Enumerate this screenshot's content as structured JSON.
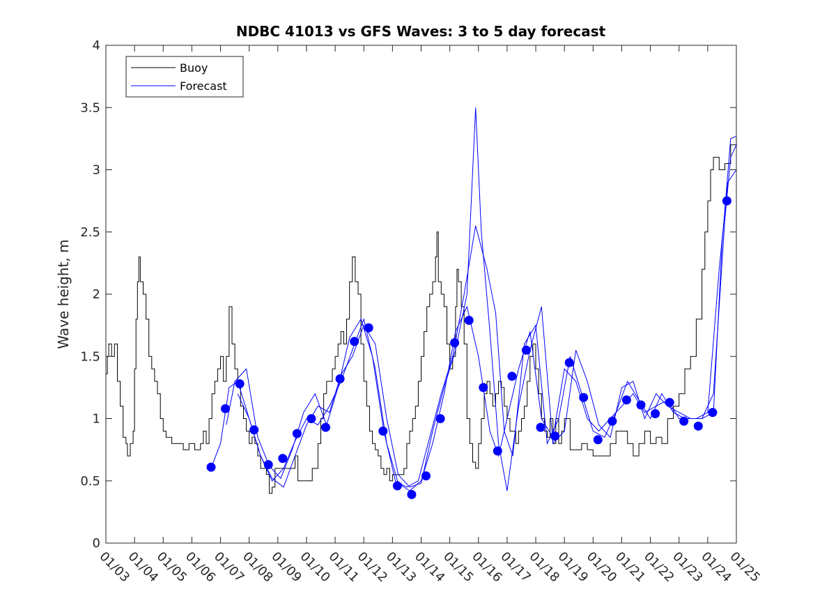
{
  "chart_data": {
    "type": "line",
    "title": "NDBC 41013 vs GFS Waves: 3 to 5 day forecast",
    "xlabel": "",
    "ylabel": "Wave height, m",
    "xlim": [
      0,
      22
    ],
    "ylim": [
      0,
      4
    ],
    "x_ticks": [
      "01/03",
      "01/04",
      "01/05",
      "01/06",
      "01/07",
      "01/08",
      "01/09",
      "01/10",
      "01/11",
      "01/12",
      "01/13",
      "01/14",
      "01/15",
      "01/16",
      "01/17",
      "01/18",
      "01/19",
      "01/20",
      "01/21",
      "01/22",
      "01/23",
      "01/24",
      "01/25"
    ],
    "y_ticks": [
      "0",
      "0.5",
      "1",
      "1.5",
      "2",
      "2.5",
      "3",
      "3.5",
      "4"
    ],
    "y_tick_values": [
      0,
      0.5,
      1,
      1.5,
      2,
      2.5,
      3,
      3.5,
      4
    ],
    "legend": {
      "position": "top-left",
      "entries": [
        {
          "label": "Buoy",
          "color": "#000000"
        },
        {
          "label": "Forecast",
          "color": "#0000ff"
        }
      ]
    },
    "colors": {
      "buoy": "#000000",
      "forecast": "#0000ff"
    },
    "buoy": {
      "name": "Buoy",
      "points": [
        [
          0,
          1.36
        ],
        [
          0.05,
          1.5
        ],
        [
          0.1,
          1.6
        ],
        [
          0.2,
          1.5
        ],
        [
          0.3,
          1.6
        ],
        [
          0.4,
          1.3
        ],
        [
          0.5,
          1.1
        ],
        [
          0.6,
          0.85
        ],
        [
          0.7,
          0.8
        ],
        [
          0.75,
          0.7
        ],
        [
          0.85,
          0.8
        ],
        [
          0.95,
          0.9
        ],
        [
          1.0,
          1.4
        ],
        [
          1.05,
          1.8
        ],
        [
          1.1,
          2.1
        ],
        [
          1.15,
          2.3
        ],
        [
          1.2,
          2.1
        ],
        [
          1.3,
          2.0
        ],
        [
          1.4,
          1.8
        ],
        [
          1.5,
          1.5
        ],
        [
          1.6,
          1.4
        ],
        [
          1.7,
          1.3
        ],
        [
          1.8,
          1.2
        ],
        [
          1.9,
          1.0
        ],
        [
          2.0,
          0.9
        ],
        [
          2.1,
          0.85
        ],
        [
          2.3,
          0.8
        ],
        [
          2.5,
          0.8
        ],
        [
          2.7,
          0.75
        ],
        [
          2.9,
          0.8
        ],
        [
          3.1,
          0.75
        ],
        [
          3.3,
          0.8
        ],
        [
          3.4,
          0.9
        ],
        [
          3.5,
          0.8
        ],
        [
          3.6,
          1.0
        ],
        [
          3.7,
          1.2
        ],
        [
          3.8,
          1.3
        ],
        [
          3.9,
          1.4
        ],
        [
          4.0,
          1.5
        ],
        [
          4.1,
          1.3
        ],
        [
          4.2,
          1.5
        ],
        [
          4.3,
          1.9
        ],
        [
          4.4,
          1.6
        ],
        [
          4.5,
          1.4
        ],
        [
          4.6,
          1.3
        ],
        [
          4.7,
          1.1
        ],
        [
          4.8,
          1.0
        ],
        [
          4.9,
          0.9
        ],
        [
          5.0,
          0.8
        ],
        [
          5.1,
          0.85
        ],
        [
          5.2,
          0.8
        ],
        [
          5.3,
          0.7
        ],
        [
          5.4,
          0.6
        ],
        [
          5.5,
          0.6
        ],
        [
          5.6,
          0.55
        ],
        [
          5.7,
          0.4
        ],
        [
          5.8,
          0.45
        ],
        [
          5.9,
          0.6
        ],
        [
          6.0,
          0.6
        ],
        [
          6.2,
          0.6
        ],
        [
          6.4,
          0.6
        ],
        [
          6.6,
          0.7
        ],
        [
          6.7,
          0.5
        ],
        [
          6.9,
          0.5
        ],
        [
          7.2,
          0.6
        ],
        [
          7.4,
          0.8
        ],
        [
          7.5,
          1.0
        ],
        [
          7.6,
          1.2
        ],
        [
          7.7,
          1.3
        ],
        [
          7.8,
          1.3
        ],
        [
          7.9,
          1.4
        ],
        [
          8.0,
          1.5
        ],
        [
          8.1,
          1.6
        ],
        [
          8.2,
          1.7
        ],
        [
          8.3,
          1.6
        ],
        [
          8.4,
          1.8
        ],
        [
          8.5,
          2.1
        ],
        [
          8.6,
          2.3
        ],
        [
          8.7,
          2.1
        ],
        [
          8.8,
          2.0
        ],
        [
          8.9,
          1.6
        ],
        [
          9.0,
          1.3
        ],
        [
          9.1,
          1.1
        ],
        [
          9.2,
          0.9
        ],
        [
          9.3,
          0.8
        ],
        [
          9.4,
          0.75
        ],
        [
          9.5,
          0.7
        ],
        [
          9.6,
          0.6
        ],
        [
          9.7,
          0.55
        ],
        [
          9.8,
          0.6
        ],
        [
          9.9,
          0.5
        ],
        [
          10.0,
          0.55
        ],
        [
          10.2,
          0.55
        ],
        [
          10.4,
          0.6
        ],
        [
          10.5,
          0.8
        ],
        [
          10.6,
          0.9
        ],
        [
          10.7,
          1.0
        ],
        [
          10.8,
          1.1
        ],
        [
          10.9,
          1.3
        ],
        [
          11.0,
          1.5
        ],
        [
          11.1,
          1.7
        ],
        [
          11.2,
          1.9
        ],
        [
          11.3,
          2.0
        ],
        [
          11.4,
          2.1
        ],
        [
          11.5,
          2.3
        ],
        [
          11.55,
          2.5
        ],
        [
          11.6,
          2.1
        ],
        [
          11.7,
          2.0
        ],
        [
          11.8,
          1.9
        ],
        [
          11.9,
          1.6
        ],
        [
          12.0,
          1.4
        ],
        [
          12.1,
          1.5
        ],
        [
          12.2,
          1.9
        ],
        [
          12.25,
          2.2
        ],
        [
          12.3,
          2.1
        ],
        [
          12.4,
          1.9
        ],
        [
          12.5,
          1.6
        ],
        [
          12.6,
          1.0
        ],
        [
          12.7,
          0.8
        ],
        [
          12.8,
          0.65
        ],
        [
          12.9,
          0.6
        ],
        [
          13.0,
          0.8
        ],
        [
          13.1,
          1.0
        ],
        [
          13.2,
          1.2
        ],
        [
          13.3,
          1.3
        ],
        [
          13.4,
          1.2
        ],
        [
          13.5,
          1.1
        ],
        [
          13.6,
          1.2
        ],
        [
          13.7,
          1.3
        ],
        [
          13.8,
          1.25
        ],
        [
          13.9,
          1.1
        ],
        [
          14.0,
          1.0
        ],
        [
          14.1,
          0.9
        ],
        [
          14.2,
          0.9
        ],
        [
          14.3,
          0.8
        ],
        [
          14.4,
          0.9
        ],
        [
          14.5,
          1.0
        ],
        [
          14.6,
          1.1
        ],
        [
          14.7,
          1.3
        ],
        [
          14.8,
          1.5
        ],
        [
          14.9,
          1.6
        ],
        [
          15.0,
          1.4
        ],
        [
          15.1,
          1.2
        ],
        [
          15.2,
          1.0
        ],
        [
          15.3,
          0.9
        ],
        [
          15.4,
          0.85
        ],
        [
          15.5,
          1.0
        ],
        [
          15.6,
          0.8
        ],
        [
          15.7,
          1.0
        ],
        [
          15.8,
          0.8
        ],
        [
          15.9,
          0.9
        ],
        [
          16.0,
          1.0
        ],
        [
          16.2,
          0.75
        ],
        [
          16.4,
          0.75
        ],
        [
          16.6,
          0.8
        ],
        [
          16.8,
          0.75
        ],
        [
          17.0,
          0.7
        ],
        [
          17.2,
          0.7
        ],
        [
          17.4,
          0.7
        ],
        [
          17.6,
          0.8
        ],
        [
          17.8,
          0.9
        ],
        [
          18.0,
          0.9
        ],
        [
          18.2,
          0.8
        ],
        [
          18.4,
          0.7
        ],
        [
          18.6,
          0.8
        ],
        [
          18.8,
          0.9
        ],
        [
          19.0,
          0.8
        ],
        [
          19.2,
          0.85
        ],
        [
          19.4,
          0.8
        ],
        [
          19.6,
          1.0
        ],
        [
          19.8,
          1.1
        ],
        [
          20.0,
          1.2
        ],
        [
          20.2,
          1.4
        ],
        [
          20.4,
          1.5
        ],
        [
          20.6,
          1.8
        ],
        [
          20.8,
          2.2
        ],
        [
          20.9,
          2.5
        ],
        [
          21.0,
          2.75
        ],
        [
          21.1,
          3.0
        ],
        [
          21.2,
          3.1
        ],
        [
          21.4,
          3.0
        ],
        [
          21.6,
          3.05
        ],
        [
          21.8,
          3.2
        ],
        [
          22.0,
          3.25
        ]
      ]
    },
    "forecast_points": [
      {
        "x": 3.67,
        "y": 0.61
      },
      {
        "x": 4.17,
        "y": 1.08
      },
      {
        "x": 4.67,
        "y": 1.28
      },
      {
        "x": 5.17,
        "y": 0.91
      },
      {
        "x": 5.67,
        "y": 0.63
      },
      {
        "x": 6.17,
        "y": 0.68
      },
      {
        "x": 6.67,
        "y": 0.88
      },
      {
        "x": 7.17,
        "y": 1.0
      },
      {
        "x": 7.67,
        "y": 0.93
      },
      {
        "x": 8.17,
        "y": 1.32
      },
      {
        "x": 8.67,
        "y": 1.62
      },
      {
        "x": 9.17,
        "y": 1.73
      },
      {
        "x": 9.67,
        "y": 0.9
      },
      {
        "x": 10.17,
        "y": 0.46
      },
      {
        "x": 10.67,
        "y": 0.39
      },
      {
        "x": 11.17,
        "y": 0.54
      },
      {
        "x": 11.67,
        "y": 1.0
      },
      {
        "x": 12.17,
        "y": 1.61
      },
      {
        "x": 12.67,
        "y": 1.79
      },
      {
        "x": 13.17,
        "y": 1.25
      },
      {
        "x": 13.67,
        "y": 0.74
      },
      {
        "x": 14.17,
        "y": 1.34
      },
      {
        "x": 14.67,
        "y": 1.55
      },
      {
        "x": 15.17,
        "y": 0.93
      },
      {
        "x": 15.67,
        "y": 0.86
      },
      {
        "x": 16.17,
        "y": 1.45
      },
      {
        "x": 16.67,
        "y": 1.17
      },
      {
        "x": 17.17,
        "y": 0.83
      },
      {
        "x": 17.67,
        "y": 0.98
      },
      {
        "x": 18.17,
        "y": 1.15
      },
      {
        "x": 18.67,
        "y": 1.11
      },
      {
        "x": 19.17,
        "y": 1.04
      },
      {
        "x": 19.67,
        "y": 1.13
      },
      {
        "x": 20.17,
        "y": 0.98
      },
      {
        "x": 20.67,
        "y": 0.94
      },
      {
        "x": 21.17,
        "y": 1.05
      },
      {
        "x": 21.67,
        "y": 2.75
      }
    ],
    "forecast_series": [
      [
        [
          3.7,
          0.62
        ],
        [
          4.0,
          0.8
        ],
        [
          4.3,
          1.25
        ],
        [
          4.6,
          1.3
        ],
        [
          5.0,
          1.0
        ],
        [
          5.4,
          0.7
        ],
        [
          5.8,
          0.5
        ],
        [
          6.2,
          0.6
        ],
        [
          6.6,
          0.82
        ],
        [
          7.0,
          1.0
        ],
        [
          7.4,
          0.95
        ],
        [
          7.8,
          1.1
        ],
        [
          8.2,
          1.3
        ],
        [
          8.6,
          1.55
        ],
        [
          9.0,
          1.8
        ],
        [
          9.4,
          1.4
        ],
        [
          9.8,
          0.8
        ],
        [
          10.2,
          0.48
        ],
        [
          10.6,
          0.42
        ],
        [
          11.0,
          0.5
        ],
        [
          11.4,
          0.8
        ],
        [
          11.8,
          1.2
        ],
        [
          12.2,
          1.7
        ],
        [
          12.6,
          1.9
        ],
        [
          13.0,
          1.5
        ],
        [
          13.4,
          0.9
        ],
        [
          13.7,
          0.7
        ],
        [
          14.0,
          1.0
        ],
        [
          14.4,
          1.4
        ],
        [
          14.8,
          1.7
        ],
        [
          15.2,
          1.0
        ],
        [
          15.6,
          0.85
        ],
        [
          16.0,
          1.4
        ],
        [
          16.4,
          1.3
        ],
        [
          16.8,
          1.0
        ],
        [
          17.2,
          0.9
        ],
        [
          17.6,
          1.0
        ],
        [
          18.0,
          1.1
        ],
        [
          18.4,
          1.2
        ],
        [
          18.8,
          1.05
        ],
        [
          19.2,
          1.1
        ],
        [
          19.6,
          1.15
        ],
        [
          20.0,
          1.0
        ],
        [
          20.4,
          1.0
        ],
        [
          20.8,
          1.0
        ],
        [
          21.2,
          1.2
        ],
        [
          21.6,
          2.6
        ],
        [
          21.8,
          3.1
        ],
        [
          22.0,
          3.2
        ]
      ],
      [
        [
          4.2,
          0.95
        ],
        [
          4.5,
          1.3
        ],
        [
          4.9,
          1.4
        ],
        [
          5.3,
          0.85
        ],
        [
          5.7,
          0.62
        ],
        [
          6.1,
          0.52
        ],
        [
          6.5,
          0.75
        ],
        [
          6.9,
          1.05
        ],
        [
          7.3,
          1.2
        ],
        [
          7.7,
          0.95
        ],
        [
          8.1,
          1.25
        ],
        [
          8.5,
          1.65
        ],
        [
          8.9,
          1.8
        ],
        [
          9.3,
          1.5
        ],
        [
          9.7,
          0.9
        ],
        [
          10.1,
          0.5
        ],
        [
          10.5,
          0.45
        ],
        [
          10.9,
          0.5
        ],
        [
          11.3,
          0.85
        ],
        [
          11.7,
          1.2
        ],
        [
          12.1,
          1.5
        ],
        [
          12.5,
          2.0
        ],
        [
          12.9,
          2.55
        ],
        [
          13.3,
          2.2
        ],
        [
          13.6,
          1.85
        ],
        [
          13.9,
          0.9
        ],
        [
          14.2,
          0.7
        ],
        [
          14.6,
          1.6
        ],
        [
          15.0,
          1.75
        ],
        [
          15.4,
          0.8
        ],
        [
          15.8,
          1.0
        ],
        [
          16.2,
          1.5
        ],
        [
          16.6,
          1.2
        ],
        [
          17.0,
          0.9
        ],
        [
          17.4,
          0.85
        ],
        [
          17.8,
          1.05
        ],
        [
          18.2,
          1.3
        ],
        [
          18.6,
          1.15
        ],
        [
          19.0,
          1.0
        ],
        [
          19.4,
          1.2
        ],
        [
          19.8,
          1.05
        ],
        [
          20.2,
          1.0
        ],
        [
          20.6,
          1.0
        ],
        [
          21.0,
          1.05
        ],
        [
          21.4,
          2.2
        ],
        [
          21.7,
          2.9
        ],
        [
          22.0,
          3.0
        ]
      ],
      [
        [
          4.6,
          1.2
        ],
        [
          5.0,
          1.0
        ],
        [
          5.4,
          0.7
        ],
        [
          5.8,
          0.52
        ],
        [
          6.2,
          0.45
        ],
        [
          6.6,
          0.7
        ],
        [
          7.0,
          0.95
        ],
        [
          7.4,
          1.1
        ],
        [
          7.8,
          1.05
        ],
        [
          8.2,
          1.35
        ],
        [
          8.6,
          1.5
        ],
        [
          9.0,
          1.75
        ],
        [
          9.4,
          1.6
        ],
        [
          9.8,
          1.0
        ],
        [
          10.2,
          0.55
        ],
        [
          10.6,
          0.45
        ],
        [
          11.0,
          0.48
        ],
        [
          11.4,
          0.9
        ],
        [
          11.8,
          1.25
        ],
        [
          12.2,
          1.55
        ],
        [
          12.6,
          2.0
        ],
        [
          12.9,
          3.5
        ],
        [
          13.1,
          2.5
        ],
        [
          13.4,
          1.7
        ],
        [
          13.7,
          0.8
        ],
        [
          14.0,
          0.42
        ],
        [
          14.4,
          1.1
        ],
        [
          14.8,
          1.55
        ],
        [
          15.2,
          1.9
        ],
        [
          15.6,
          0.8
        ],
        [
          16.0,
          0.9
        ],
        [
          16.4,
          1.55
        ],
        [
          16.8,
          1.3
        ],
        [
          17.2,
          0.95
        ],
        [
          17.6,
          0.85
        ],
        [
          18.0,
          1.25
        ],
        [
          18.4,
          1.3
        ],
        [
          18.8,
          1.0
        ],
        [
          19.2,
          1.2
        ],
        [
          19.6,
          1.1
        ],
        [
          20.0,
          1.05
        ],
        [
          20.4,
          1.0
        ],
        [
          20.8,
          1.0
        ],
        [
          21.2,
          1.05
        ],
        [
          21.5,
          2.4
        ],
        [
          21.8,
          3.25
        ],
        [
          22.0,
          3.27
        ]
      ]
    ]
  }
}
